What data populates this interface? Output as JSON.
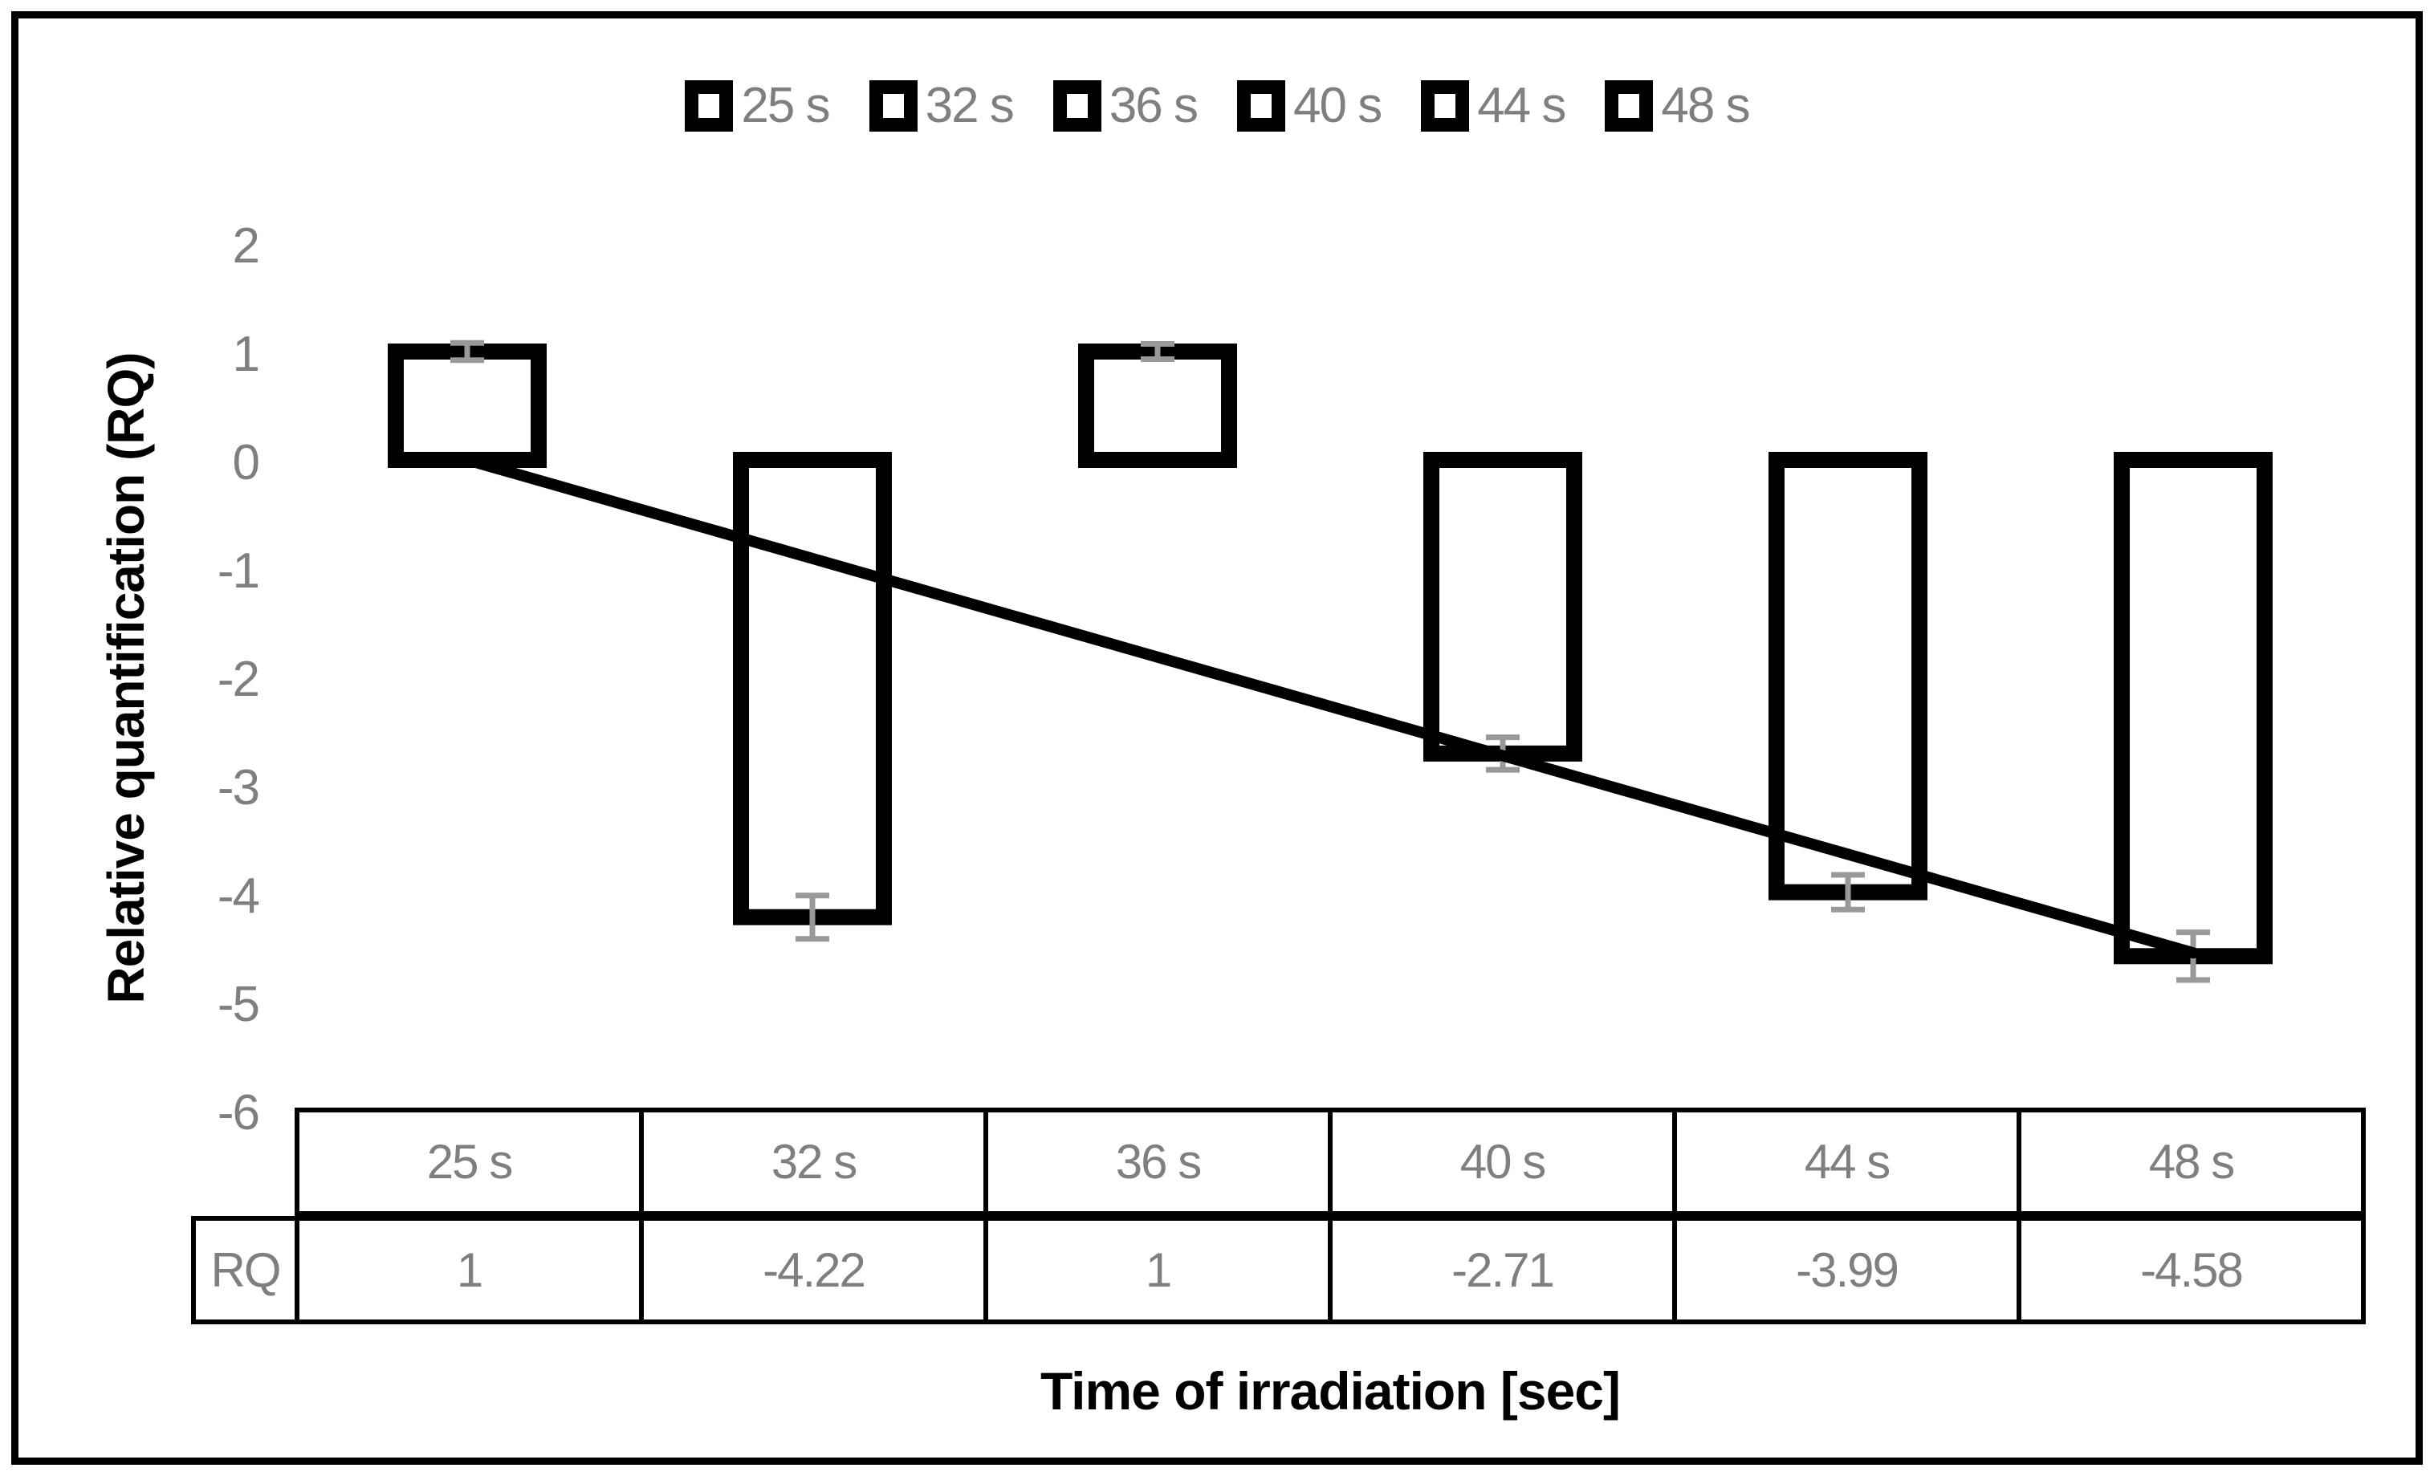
{
  "legend": {
    "items": [
      {
        "label": "25 s"
      },
      {
        "label": "32 s"
      },
      {
        "label": "36 s"
      },
      {
        "label": "40 s"
      },
      {
        "label": "44 s"
      },
      {
        "label": "48 s"
      }
    ]
  },
  "y_axis": {
    "title": "Relative quantification (RQ)",
    "tick_labels": [
      "2",
      "1",
      "0",
      "-1",
      "-2",
      "-3",
      "-4",
      "-5",
      "-6"
    ]
  },
  "x_axis": {
    "title": "Time of irradiation [sec]"
  },
  "chart_data": {
    "type": "bar",
    "title": "",
    "xlabel": "Time of irradiation [sec]",
    "ylabel": "Relative quantification (RQ)",
    "categories": [
      "25 s",
      "32 s",
      "36 s",
      "40 s",
      "44 s",
      "48 s"
    ],
    "values": [
      1,
      -4.22,
      1,
      -2.71,
      -3.99,
      -4.58
    ],
    "error_bars": [
      0.08,
      0.2,
      0.07,
      0.15,
      0.16,
      0.22
    ],
    "trendline": {
      "from_category_index": 0,
      "from_value": 0,
      "to_category_index": 5,
      "to_value": -4.55
    },
    "ylim": [
      -6,
      2
    ],
    "yticks": [
      2,
      1,
      0,
      -1,
      -2,
      -3,
      -4,
      -5,
      -6
    ],
    "grid": false,
    "legend_position": "top",
    "bar_style": "hollow"
  },
  "data_table": {
    "column_headers": [
      "25 s",
      "32 s",
      "36 s",
      "40 s",
      "44 s",
      "48 s"
    ],
    "row_header": "RQ",
    "values": [
      "1",
      "-4.22",
      "1",
      "-2.71",
      "-3.99",
      "-4.58"
    ]
  },
  "colors": {
    "background": "#ffffff",
    "frame_border": "#000000",
    "bar_outline": "#000000",
    "bar_fill": "#ffffff",
    "trend_line": "#000000",
    "error_bar": "#999999",
    "gray_text": "#7f7f7f",
    "axis_title_text": "#000000",
    "table_line": "#000000"
  }
}
